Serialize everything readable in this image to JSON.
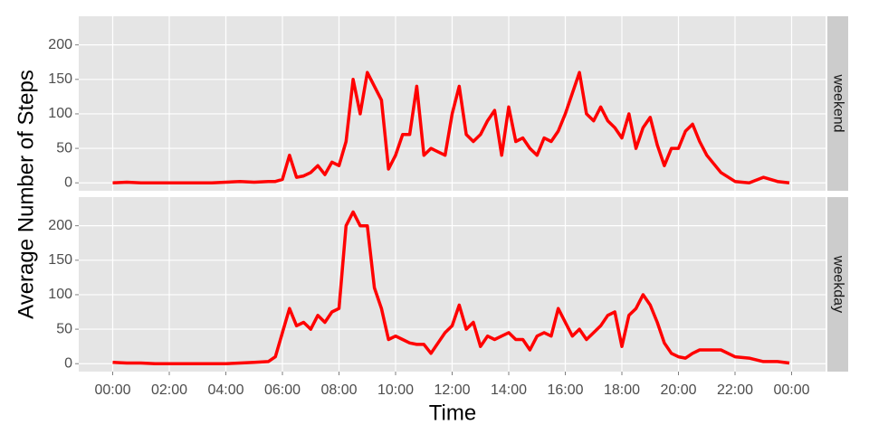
{
  "chart_data": {
    "type": "line",
    "facet": true,
    "x_label": "Time",
    "y_label": "Average Number of Steps",
    "x": [
      0,
      0.5,
      1,
      1.5,
      2,
      2.5,
      3,
      3.5,
      4,
      4.5,
      5,
      5.5,
      5.75,
      6,
      6.25,
      6.5,
      6.75,
      7,
      7.25,
      7.5,
      7.75,
      8,
      8.25,
      8.5,
      8.75,
      9,
      9.25,
      9.5,
      9.75,
      10,
      10.25,
      10.5,
      10.75,
      11,
      11.25,
      11.5,
      11.75,
      12,
      12.25,
      12.5,
      12.75,
      13,
      13.25,
      13.5,
      13.75,
      14,
      14.25,
      14.5,
      14.75,
      15,
      15.25,
      15.5,
      15.75,
      16,
      16.25,
      16.5,
      16.75,
      17,
      17.25,
      17.5,
      17.75,
      18,
      18.25,
      18.5,
      18.75,
      19,
      19.25,
      19.5,
      19.75,
      20,
      20.25,
      20.5,
      20.75,
      21,
      21.5,
      22,
      22.5,
      23,
      23.5,
      23.92
    ],
    "series": [
      {
        "name": "weekend",
        "color": "#ff0000",
        "values": [
          0,
          1,
          0,
          0,
          0,
          0,
          0,
          0,
          1,
          2,
          1,
          2,
          2,
          5,
          40,
          8,
          10,
          15,
          25,
          12,
          30,
          25,
          60,
          150,
          100,
          160,
          140,
          120,
          20,
          40,
          70,
          70,
          140,
          40,
          50,
          45,
          40,
          100,
          140,
          70,
          60,
          70,
          90,
          105,
          40,
          110,
          60,
          65,
          50,
          40,
          65,
          60,
          75,
          100,
          130,
          160,
          100,
          90,
          110,
          90,
          80,
          65,
          100,
          50,
          80,
          95,
          55,
          25,
          50,
          50,
          75,
          85,
          60,
          40,
          15,
          2,
          0,
          8,
          2,
          0
        ]
      },
      {
        "name": "weekday",
        "color": "#ff0000",
        "values": [
          2,
          1,
          1,
          0,
          0,
          0,
          0,
          0,
          0,
          1,
          2,
          3,
          10,
          45,
          80,
          55,
          60,
          50,
          70,
          60,
          75,
          80,
          200,
          220,
          200,
          200,
          110,
          80,
          35,
          40,
          35,
          30,
          28,
          28,
          15,
          30,
          45,
          55,
          85,
          50,
          60,
          25,
          40,
          35,
          40,
          45,
          35,
          35,
          20,
          40,
          45,
          40,
          80,
          60,
          40,
          50,
          35,
          45,
          55,
          70,
          75,
          25,
          70,
          80,
          100,
          85,
          60,
          30,
          15,
          10,
          8,
          15,
          20,
          20,
          20,
          10,
          8,
          3,
          3,
          1
        ]
      }
    ],
    "xlim": [
      -1.2,
      25.2
    ],
    "xticks": [
      {
        "value": 0,
        "label": "00:00"
      },
      {
        "value": 2,
        "label": "02:00"
      },
      {
        "value": 4,
        "label": "04:00"
      },
      {
        "value": 6,
        "label": "06:00"
      },
      {
        "value": 8,
        "label": "08:00"
      },
      {
        "value": 10,
        "label": "10:00"
      },
      {
        "value": 12,
        "label": "12:00"
      },
      {
        "value": 14,
        "label": "14:00"
      },
      {
        "value": 16,
        "label": "16:00"
      },
      {
        "value": 18,
        "label": "18:00"
      },
      {
        "value": 20,
        "label": "20:00"
      },
      {
        "value": 22,
        "label": "22:00"
      },
      {
        "value": 24,
        "label": "00:00"
      }
    ],
    "ylim": [
      -11.5,
      241.5
    ],
    "yticks": [
      0,
      50,
      100,
      150,
      200
    ],
    "grid": true
  }
}
